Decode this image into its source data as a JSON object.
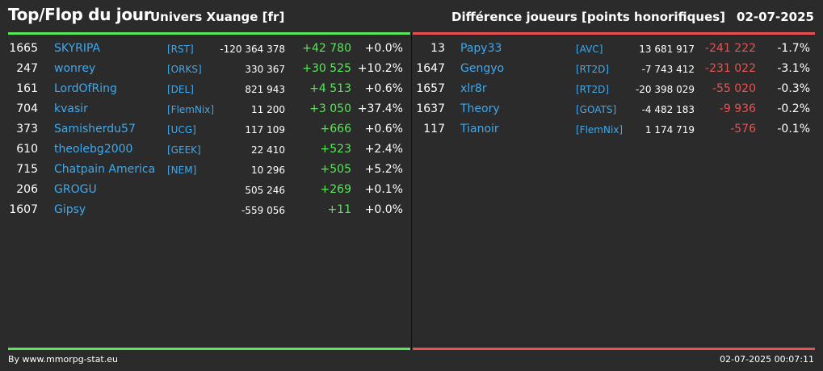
{
  "header": {
    "title": "Top/Flop du jour",
    "subtitle": "Univers Xuange [fr]",
    "ranking": "Différence joueurs [points honorifiques]",
    "date": "02-07-2025"
  },
  "top": [
    {
      "rank": "1665",
      "name": "SKYRIPA",
      "tag": "[RST]",
      "total": "-120 364 378",
      "diff": "+42 780",
      "pct": "+0.0%"
    },
    {
      "rank": "247",
      "name": "wonrey",
      "tag": "[ORKS]",
      "total": "330 367",
      "diff": "+30 525",
      "pct": "+10.2%"
    },
    {
      "rank": "161",
      "name": "LordOfRing",
      "tag": "[DEL]",
      "total": "821 943",
      "diff": "+4 513",
      "pct": "+0.6%"
    },
    {
      "rank": "704",
      "name": "kvasir",
      "tag": "[FlemNix]",
      "total": "11 200",
      "diff": "+3 050",
      "pct": "+37.4%"
    },
    {
      "rank": "373",
      "name": "Samisherdu57",
      "tag": "[UCG]",
      "total": "117 109",
      "diff": "+666",
      "pct": "+0.6%"
    },
    {
      "rank": "610",
      "name": "theolebg2000",
      "tag": "[GEEK]",
      "total": "22 410",
      "diff": "+523",
      "pct": "+2.4%"
    },
    {
      "rank": "715",
      "name": "Chatpain America",
      "tag": "[NEM]",
      "total": "10 296",
      "diff": "+505",
      "pct": "+5.2%"
    },
    {
      "rank": "206",
      "name": "GROGU",
      "tag": "",
      "total": "505 246",
      "diff": "+269",
      "pct": "+0.1%"
    },
    {
      "rank": "1607",
      "name": "Gipsy",
      "tag": "",
      "total": "-559 056",
      "diff": "+11",
      "pct": "+0.0%"
    }
  ],
  "flop": [
    {
      "rank": "13",
      "name": "Papy33",
      "tag": "[AVC]",
      "total": "13 681 917",
      "diff": "-241 222",
      "pct": "-1.7%"
    },
    {
      "rank": "1647",
      "name": "Gengyo",
      "tag": "[RT2D]",
      "total": "-7 743 412",
      "diff": "-231 022",
      "pct": "-3.1%"
    },
    {
      "rank": "1657",
      "name": "xlr8r",
      "tag": "[RT2D]",
      "total": "-20 398 029",
      "diff": "-55 020",
      "pct": "-0.3%"
    },
    {
      "rank": "1637",
      "name": "Theory",
      "tag": "[GOATS]",
      "total": "-4 482 183",
      "diff": "-9 936",
      "pct": "-0.2%"
    },
    {
      "rank": "117",
      "name": "Tianoir",
      "tag": "[FlemNix]",
      "total": "1 174 719",
      "diff": "-576",
      "pct": "-0.1%"
    }
  ],
  "footer": {
    "source": "By www.mmorpg-stat.eu",
    "timestamp": "02-07-2025 00:07:11"
  },
  "colors": {
    "background": "#2b2b2b",
    "top_accent": "#59e659",
    "flop_accent": "#e85252",
    "player_link": "#3fa9ee"
  }
}
